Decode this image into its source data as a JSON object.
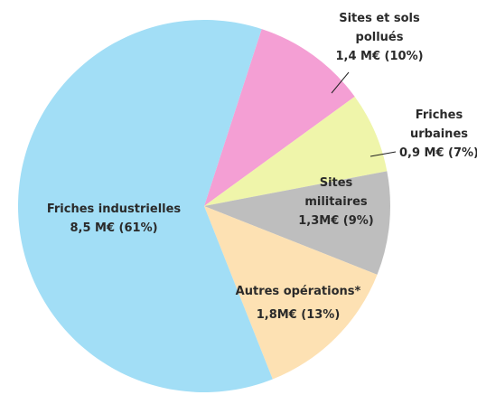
{
  "chart_data": {
    "type": "pie",
    "categories": [
      "Sites et sols pollués",
      "Friches urbaines",
      "Sites militaires",
      "Autres opérations*",
      "Friches industrielles"
    ],
    "values": [
      10,
      7,
      9,
      13,
      61
    ],
    "value_labels": [
      "1,4 M€ (10%)",
      "0,9 M€ (7%)",
      "1,3M€ (9%)",
      "1,8M€ (13%)",
      "8,5 M€ (61%)"
    ],
    "colors": [
      "#f49fd4",
      "#eff5aa",
      "#bebebe",
      "#fde1b3",
      "#a2def6"
    ]
  }
}
